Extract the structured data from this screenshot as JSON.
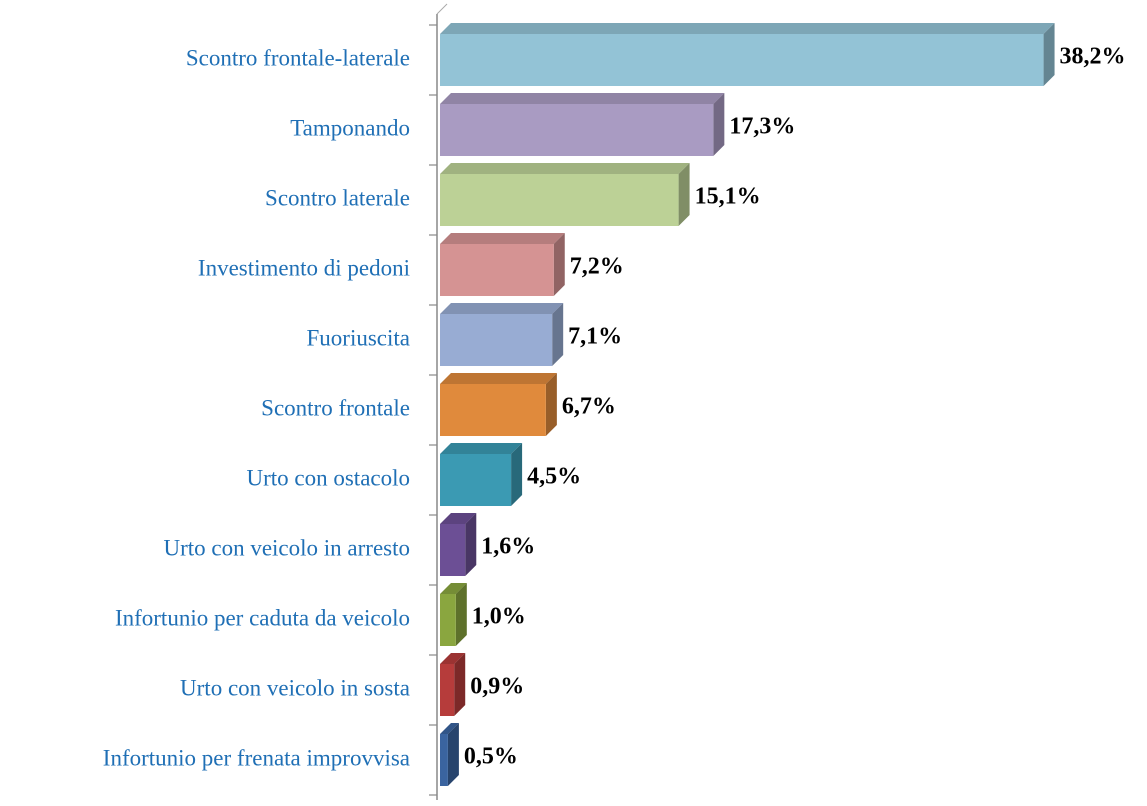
{
  "chart_data": {
    "type": "bar",
    "orientation": "horizontal",
    "categories": [
      "Scontro frontale-laterale",
      "Tamponando",
      "Scontro laterale",
      "Investimento di pedoni",
      "Fuoriuscita",
      "Scontro frontale",
      "Urto con ostacolo",
      "Urto con veicolo in arresto",
      "Infortunio per caduta da veicolo",
      "Urto con veicolo in sosta",
      "Infortunio per frenata improvvisa"
    ],
    "values": [
      38.2,
      17.3,
      15.1,
      7.2,
      7.1,
      6.7,
      4.5,
      1.6,
      1.0,
      0.9,
      0.5
    ],
    "value_labels": [
      "38,2%",
      "17,3%",
      "15,1%",
      "7,2%",
      "7,1%",
      "6,7%",
      "4,5%",
      "1,6%",
      "1,0%",
      "0,9%",
      "0,5%"
    ],
    "colors": [
      "#93c3d6",
      "#a99bc2",
      "#bcd196",
      "#d59393",
      "#98acd3",
      "#e08a3c",
      "#3b9ab3",
      "#6c4f95",
      "#8aa63f",
      "#b63c3b",
      "#3a64a0"
    ]
  }
}
